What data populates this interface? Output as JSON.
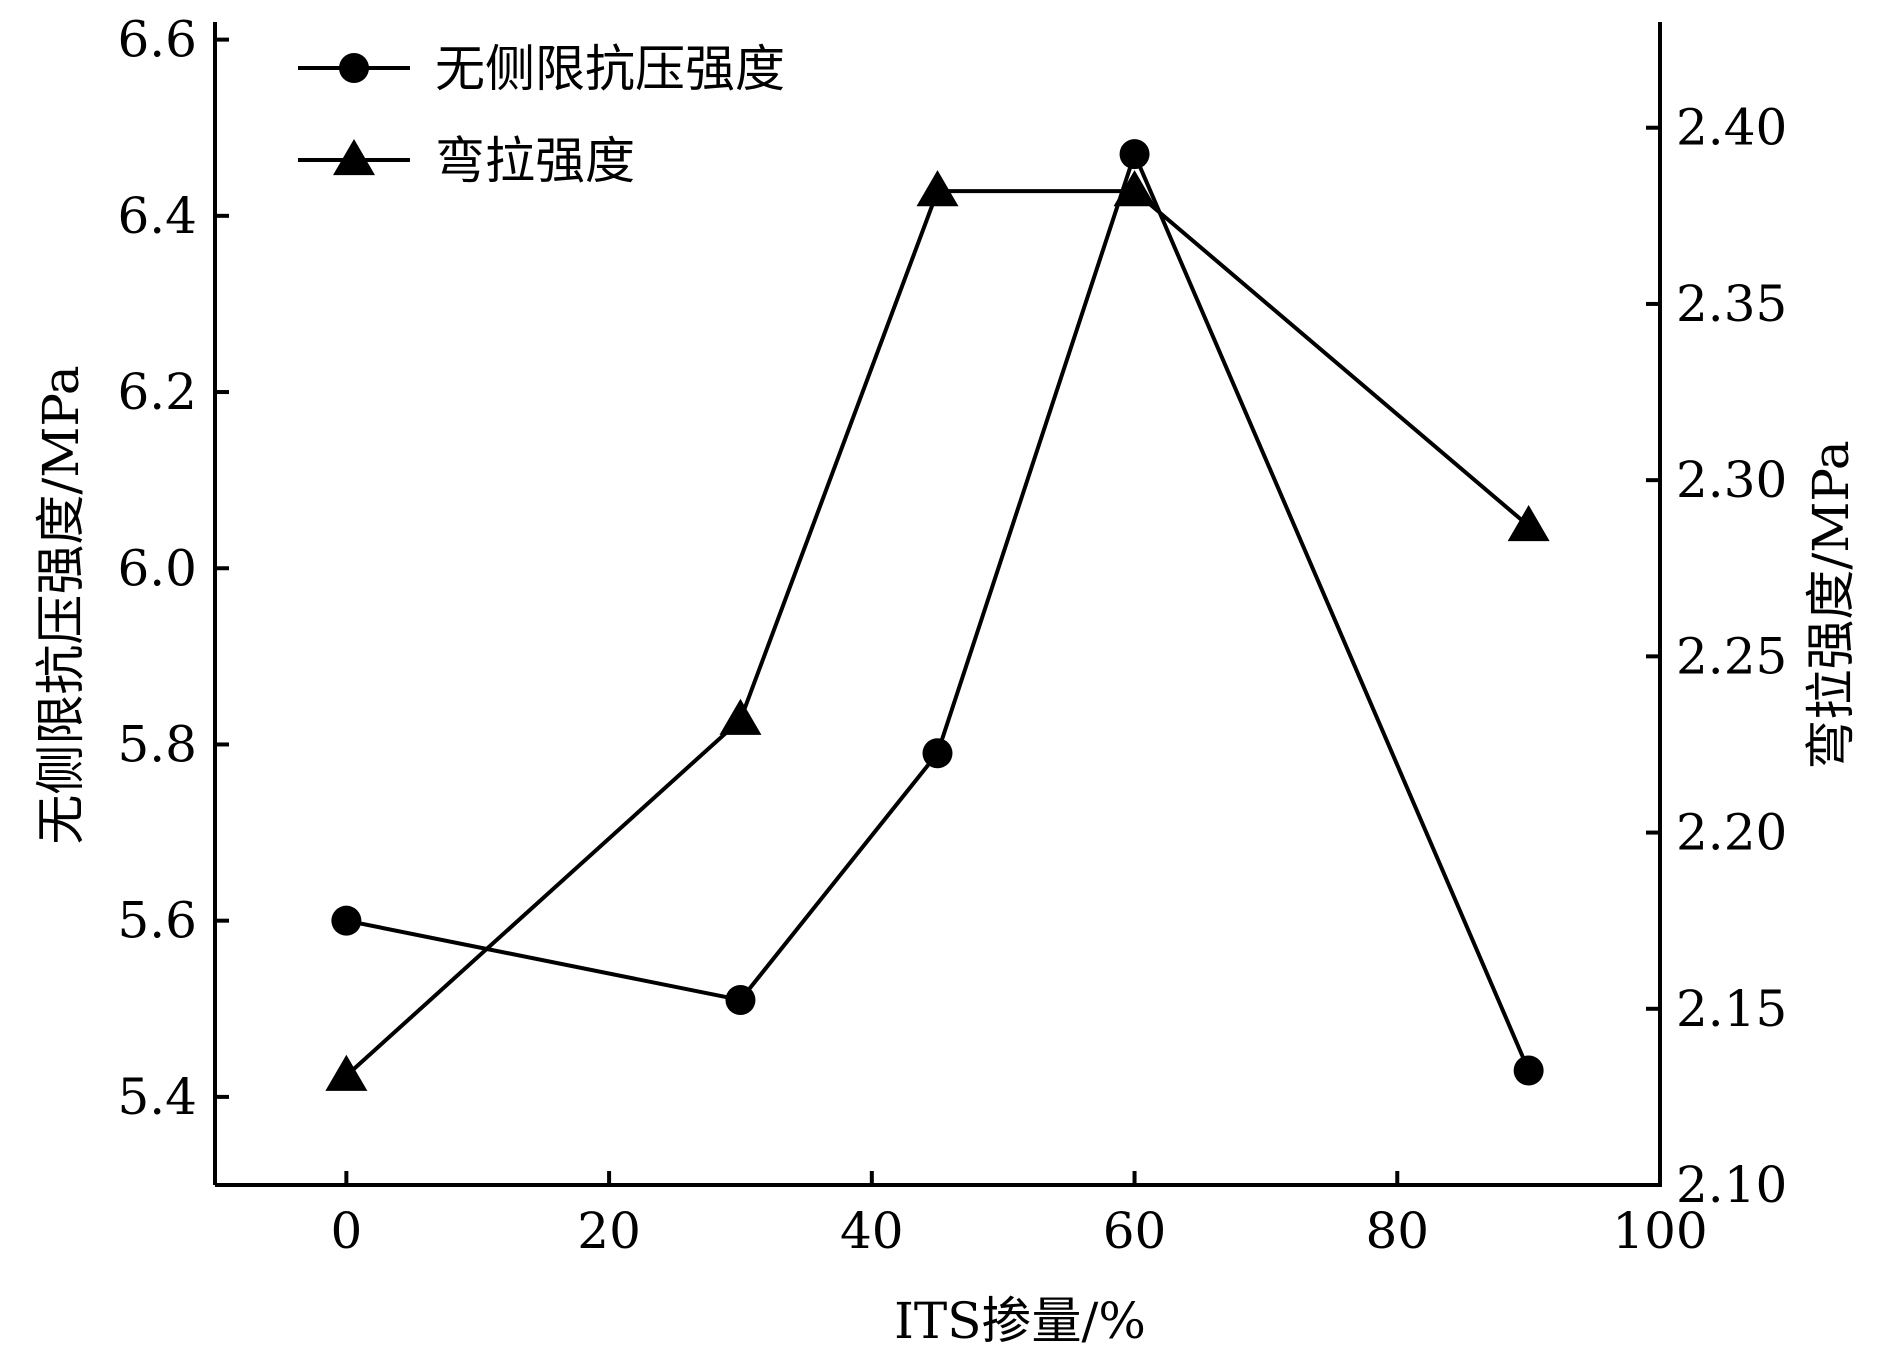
{
  "chart_data": {
    "type": "line",
    "xlabel": "ITS掺量/%",
    "ylabel_left": "无侧限抗压强度/MPa",
    "ylabel_right": "弯拉强度/MPa",
    "xlim": [
      -10,
      100
    ],
    "ylim_left": [
      5.3,
      6.62
    ],
    "ylim_right": [
      2.1,
      2.43
    ],
    "x_ticks": [
      "0",
      "20",
      "40",
      "60",
      "80",
      "100"
    ],
    "y_ticks_left": [
      "5.4",
      "5.6",
      "5.8",
      "6.0",
      "6.2",
      "6.4",
      "6.6"
    ],
    "y_ticks_right": [
      "2.10",
      "2.15",
      "2.20",
      "2.25",
      "2.30",
      "2.35",
      "2.40"
    ],
    "grid": false,
    "legend_position": "top-left",
    "series": [
      {
        "name": "无侧限抗压强度",
        "axis": "left",
        "marker": "circle",
        "color": "#000000",
        "x": [
          0,
          30,
          45,
          60,
          90
        ],
        "y": [
          5.6,
          5.51,
          5.79,
          6.47,
          5.43
        ]
      },
      {
        "name": "弯拉强度",
        "axis": "right",
        "marker": "triangle",
        "color": "#000000",
        "x": [
          0,
          30,
          45,
          60,
          90
        ],
        "y": [
          2.131,
          2.232,
          2.382,
          2.382,
          2.287
        ]
      }
    ]
  }
}
